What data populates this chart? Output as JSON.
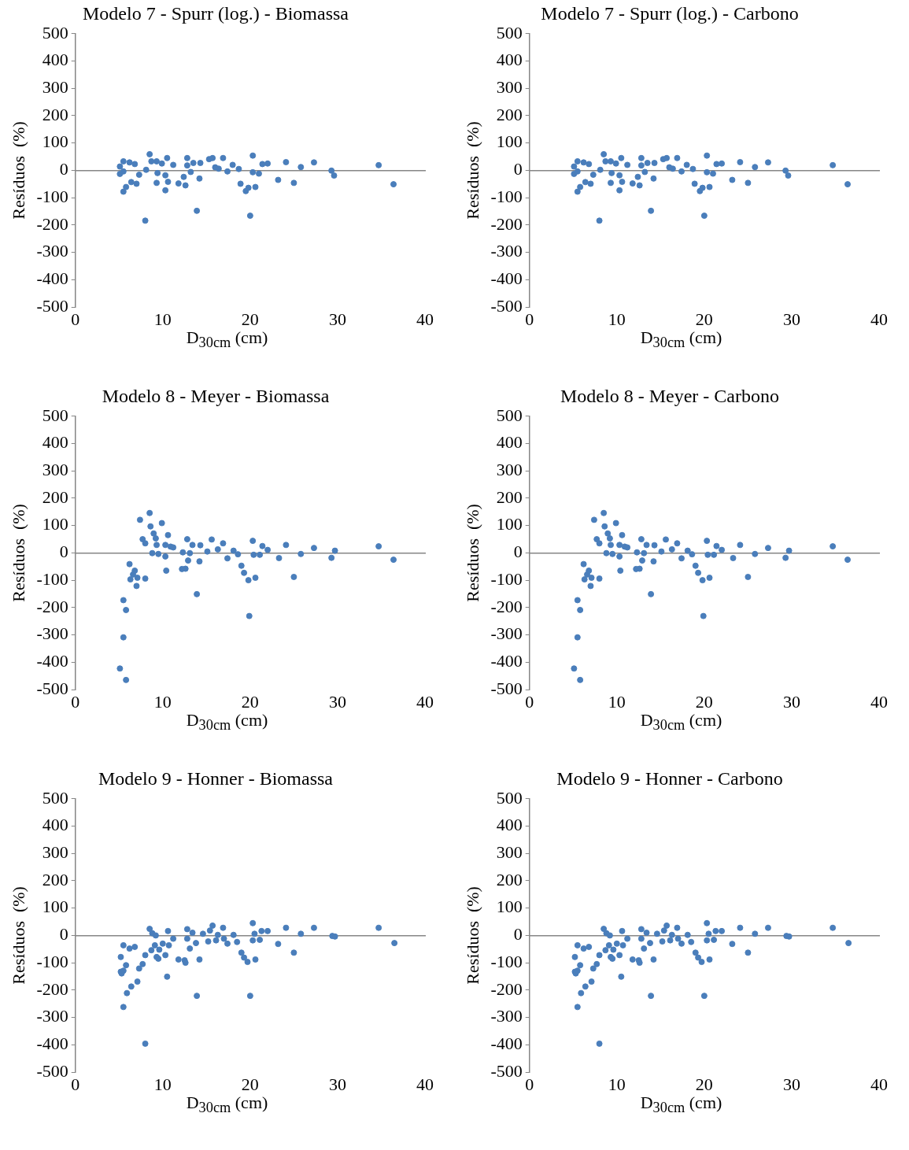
{
  "chart_data": [
    {
      "type": "scatter",
      "title": "Modelo 7 - Spurr (log.) - Biomassa",
      "xlabel": "D$_{30cm}$ (cm)",
      "ylabel": "Resíduos  (%)",
      "color": "#4a7ebb",
      "marker": "circle",
      "xlim": [
        0,
        40
      ],
      "xticks": [
        0,
        10,
        20,
        30,
        40
      ],
      "ylim": [
        -500,
        500
      ],
      "yticks": [
        -500,
        -400,
        -300,
        -200,
        -100,
        0,
        100,
        200,
        300,
        400,
        500
      ],
      "x": [
        5.1,
        5.1,
        5.5,
        5.5,
        5.5,
        5.8,
        6.2,
        6.4,
        6.8,
        7.0,
        7.3,
        8.0,
        8.1,
        8.5,
        8.7,
        9.3,
        9.3,
        9.4,
        9.9,
        10.3,
        10.3,
        10.5,
        10.6,
        11.2,
        11.8,
        12.4,
        12.6,
        12.8,
        12.8,
        13.2,
        13.5,
        13.9,
        14.2,
        14.3,
        15.3,
        15.7,
        16.0,
        16.4,
        16.9,
        17.4,
        18.0,
        18.7,
        18.9,
        19.5,
        19.8,
        20.0,
        20.3,
        20.3,
        20.6,
        21.0,
        21.4,
        22.0,
        23.2,
        24.1,
        25.0,
        25.8,
        27.3,
        29.3,
        29.6,
        34.7,
        36.4
      ],
      "values": [
        14,
        -13,
        33,
        -4,
        -78,
        -61,
        29,
        -43,
        23,
        -49,
        -16,
        -184,
        2,
        59,
        33,
        33,
        -46,
        -10,
        25,
        -18,
        -73,
        45,
        -42,
        20,
        -48,
        -24,
        -55,
        45,
        18,
        -6,
        27,
        -148,
        -30,
        27,
        41,
        45,
        11,
        6,
        45,
        -4,
        20,
        5,
        -49,
        -76,
        -64,
        -166,
        54,
        -7,
        -61,
        -12,
        23,
        25,
        -35,
        30,
        -46,
        12,
        29,
        -1,
        -19,
        19,
        -51
      ]
    },
    {
      "type": "scatter",
      "title": "Modelo 7 - Spurr (log.) - Carbono",
      "xlabel": "D$_{30cm}$ (cm)",
      "ylabel": "Resíduos  (%)",
      "color": "#4a7ebb",
      "marker": "circle",
      "xlim": [
        0,
        40
      ],
      "xticks": [
        0,
        10,
        20,
        30,
        40
      ],
      "ylim": [
        -500,
        500
      ],
      "yticks": [
        -500,
        -400,
        -300,
        -200,
        -100,
        0,
        100,
        200,
        300,
        400,
        500
      ],
      "x": [
        5.1,
        5.1,
        5.5,
        5.5,
        5.5,
        5.8,
        6.2,
        6.4,
        6.8,
        7.0,
        7.3,
        8.0,
        8.1,
        8.5,
        8.7,
        9.3,
        9.3,
        9.4,
        9.9,
        10.3,
        10.3,
        10.5,
        10.6,
        11.2,
        11.8,
        12.4,
        12.6,
        12.8,
        12.8,
        13.2,
        13.5,
        13.9,
        14.2,
        14.3,
        15.3,
        15.7,
        16.0,
        16.4,
        16.9,
        17.4,
        18.0,
        18.7,
        18.9,
        19.5,
        19.8,
        20.0,
        20.3,
        20.3,
        20.6,
        21.0,
        21.4,
        22.0,
        23.2,
        24.1,
        25.0,
        25.8,
        27.3,
        29.3,
        29.6,
        34.7,
        36.4
      ],
      "values": [
        14,
        -13,
        33,
        -4,
        -78,
        -61,
        29,
        -43,
        23,
        -49,
        -16,
        -184,
        2,
        59,
        33,
        33,
        -46,
        -10,
        25,
        -18,
        -73,
        45,
        -42,
        20,
        -48,
        -24,
        -55,
        45,
        18,
        -6,
        27,
        -148,
        -30,
        27,
        41,
        45,
        11,
        6,
        45,
        -4,
        20,
        5,
        -49,
        -76,
        -64,
        -166,
        54,
        -7,
        -61,
        -12,
        23,
        25,
        -35,
        30,
        -46,
        12,
        29,
        -1,
        -19,
        19,
        -51
      ]
    },
    {
      "type": "scatter",
      "title": "Modelo 8 - Meyer - Biomassa",
      "xlabel": "D$_{30cm}$ (cm)",
      "ylabel": "Resíduos  (%)",
      "color": "#4a7ebb",
      "marker": "circle",
      "xlim": [
        0,
        40
      ],
      "xticks": [
        0,
        10,
        20,
        30,
        40
      ],
      "ylim": [
        -500,
        500
      ],
      "yticks": [
        -500,
        -400,
        -300,
        -200,
        -100,
        0,
        100,
        200,
        300,
        400,
        500
      ],
      "x": [
        5.1,
        5.8,
        5.5,
        5.8,
        5.5,
        6.2,
        6.3,
        6.6,
        6.8,
        7.0,
        7.1,
        7.4,
        7.7,
        8.0,
        8.0,
        8.5,
        8.6,
        8.8,
        8.96,
        9.2,
        9.5,
        9.3,
        9.9,
        10.3,
        10.3,
        10.4,
        10.6,
        10.9,
        11.2,
        12.2,
        12.3,
        12.6,
        12.8,
        12.9,
        13.1,
        13.4,
        13.9,
        14.2,
        14.3,
        15.1,
        15.6,
        16.3,
        16.9,
        17.4,
        18.1,
        18.6,
        19.0,
        19.3,
        19.8,
        19.9,
        20.3,
        20.4,
        20.6,
        21.1,
        21.4,
        22.0,
        23.3,
        24.1,
        25.0,
        25.8,
        27.3,
        29.3,
        29.7,
        34.7,
        36.4
      ],
      "values": [
        -423,
        -465,
        -309,
        -209,
        -173,
        -41,
        -97,
        -79,
        -65,
        -121,
        -91,
        121,
        50,
        35,
        -94,
        146,
        97,
        -1,
        71,
        53,
        -4,
        29,
        109,
        29,
        -13,
        -65,
        65,
        23,
        20,
        -59,
        2,
        -58,
        50,
        -28,
        -1,
        29,
        -151,
        -31,
        28,
        5,
        49,
        13,
        35,
        -20,
        8,
        -5,
        -47,
        -73,
        -100,
        -231,
        44,
        -7,
        -91,
        -7,
        25,
        11,
        -19,
        29,
        -88,
        -4,
        18,
        -18,
        8,
        24,
        -25
      ]
    },
    {
      "type": "scatter",
      "title": "Modelo 8 - Meyer - Carbono",
      "xlabel": "D$_{30cm}$ (cm)",
      "ylabel": "Resíduos  (%)",
      "color": "#4a7ebb",
      "marker": "circle",
      "xlim": [
        0,
        40
      ],
      "xticks": [
        0,
        10,
        20,
        30,
        40
      ],
      "ylim": [
        -500,
        500
      ],
      "yticks": [
        -500,
        -400,
        -300,
        -200,
        -100,
        0,
        100,
        200,
        300,
        400,
        500
      ],
      "x": [
        5.1,
        5.8,
        5.5,
        5.8,
        5.5,
        6.2,
        6.3,
        6.6,
        6.8,
        7.0,
        7.1,
        7.4,
        7.7,
        8.0,
        8.0,
        8.5,
        8.6,
        8.8,
        8.96,
        9.2,
        9.5,
        9.3,
        9.9,
        10.3,
        10.3,
        10.4,
        10.6,
        10.9,
        11.2,
        12.2,
        12.3,
        12.6,
        12.8,
        12.9,
        13.1,
        13.4,
        13.9,
        14.2,
        14.3,
        15.1,
        15.6,
        16.3,
        16.9,
        17.4,
        18.1,
        18.6,
        19.0,
        19.3,
        19.8,
        19.9,
        20.3,
        20.4,
        20.6,
        21.1,
        21.4,
        22.0,
        23.3,
        24.1,
        25.0,
        25.8,
        27.3,
        29.3,
        29.7,
        34.7,
        36.4
      ],
      "values": [
        -423,
        -465,
        -309,
        -209,
        -173,
        -41,
        -97,
        -79,
        -65,
        -121,
        -91,
        121,
        50,
        35,
        -94,
        146,
        97,
        -1,
        71,
        53,
        -4,
        29,
        109,
        29,
        -13,
        -65,
        65,
        23,
        20,
        -59,
        2,
        -58,
        50,
        -28,
        -1,
        29,
        -151,
        -31,
        28,
        5,
        49,
        13,
        35,
        -20,
        8,
        -5,
        -47,
        -73,
        -100,
        -231,
        44,
        -7,
        -91,
        -7,
        25,
        11,
        -19,
        29,
        -88,
        -4,
        18,
        -18,
        8,
        24,
        -25
      ]
    },
    {
      "type": "scatter",
      "title": "Modelo 9 - Honner - Biomassa",
      "xlabel": "D$_{30cm}$ (cm)",
      "ylabel": "Resíduos  (%)",
      "color": "#4a7ebb",
      "marker": "circle",
      "xlim": [
        0,
        40
      ],
      "xticks": [
        0,
        10,
        20,
        30,
        40
      ],
      "ylim": [
        -500,
        500
      ],
      "yticks": [
        -500,
        -400,
        -300,
        -200,
        -100,
        0,
        100,
        200,
        300,
        400,
        500
      ],
      "x": [
        5.2,
        5.2,
        5.3,
        5.5,
        5.5,
        5.5,
        5.8,
        5.9,
        6.2,
        6.4,
        6.8,
        7.1,
        7.3,
        7.7,
        8.0,
        8.0,
        8.5,
        8.7,
        8.8,
        9.1,
        9.3,
        9.5,
        9.2,
        9.6,
        10.0,
        10.3,
        10.5,
        10.6,
        10.7,
        11.2,
        11.8,
        12.5,
        12.6,
        12.8,
        12.8,
        13.1,
        13.4,
        13.8,
        13.9,
        14.2,
        14.6,
        15.2,
        15.4,
        15.7,
        16.1,
        16.3,
        16.9,
        17.0,
        17.4,
        18.1,
        18.5,
        19.0,
        19.3,
        19.7,
        20.0,
        20.3,
        20.3,
        20.5,
        20.6,
        21.1,
        21.3,
        22.0,
        23.2,
        24.1,
        25.0,
        25.8,
        27.3,
        29.4,
        29.7,
        34.7,
        36.5
      ],
      "values": [
        -79,
        -133,
        -139,
        -129,
        -36,
        -262,
        -109,
        -211,
        -48,
        -187,
        -42,
        -169,
        -121,
        -105,
        -396,
        -72,
        24,
        -54,
        8,
        -36,
        -79,
        -85,
        0,
        -52,
        -30,
        -72,
        -151,
        16,
        -36,
        -12,
        -88,
        -91,
        -100,
        23,
        -12,
        -48,
        10,
        -28,
        -221,
        -88,
        6,
        -22,
        18,
        36,
        -18,
        2,
        28,
        -12,
        -30,
        2,
        -24,
        -63,
        -81,
        -97,
        -221,
        45,
        -18,
        6,
        -88,
        -16,
        16,
        16,
        -31,
        28,
        -63,
        6,
        28,
        -2,
        -4,
        28,
        -28
      ]
    },
    {
      "type": "scatter",
      "title": "Modelo 9 - Honner - Carbono",
      "xlabel": "D$_{30cm}$ (cm)",
      "ylabel": "Resíduos  (%)",
      "color": "#4a7ebb",
      "marker": "circle",
      "xlim": [
        0,
        40
      ],
      "xticks": [
        0,
        10,
        20,
        30,
        40
      ],
      "ylim": [
        -500,
        500
      ],
      "yticks": [
        -500,
        -400,
        -300,
        -200,
        -100,
        0,
        100,
        200,
        300,
        400,
        500
      ],
      "x": [
        5.2,
        5.2,
        5.3,
        5.5,
        5.5,
        5.5,
        5.8,
        5.9,
        6.2,
        6.4,
        6.8,
        7.1,
        7.3,
        7.7,
        8.0,
        8.0,
        8.5,
        8.7,
        8.8,
        9.1,
        9.3,
        9.5,
        9.2,
        9.6,
        10.0,
        10.3,
        10.5,
        10.6,
        10.7,
        11.2,
        11.8,
        12.5,
        12.6,
        12.8,
        12.8,
        13.1,
        13.4,
        13.8,
        13.9,
        14.2,
        14.6,
        15.2,
        15.4,
        15.7,
        16.1,
        16.3,
        16.9,
        17.0,
        17.4,
        18.1,
        18.5,
        19.0,
        19.3,
        19.7,
        20.0,
        20.3,
        20.3,
        20.5,
        20.6,
        21.1,
        21.3,
        22.0,
        23.2,
        24.1,
        25.0,
        25.8,
        27.3,
        29.4,
        29.7,
        34.7,
        36.5
      ],
      "values": [
        -79,
        -133,
        -139,
        -129,
        -36,
        -262,
        -109,
        -211,
        -48,
        -187,
        -42,
        -169,
        -121,
        -105,
        -396,
        -72,
        24,
        -54,
        8,
        -36,
        -79,
        -85,
        0,
        -52,
        -30,
        -72,
        -151,
        16,
        -36,
        -12,
        -88,
        -91,
        -100,
        23,
        -12,
        -48,
        10,
        -28,
        -221,
        -88,
        6,
        -22,
        18,
        36,
        -18,
        2,
        28,
        -12,
        -30,
        2,
        -24,
        -63,
        -81,
        -97,
        -221,
        45,
        -18,
        6,
        -88,
        -16,
        16,
        16,
        -31,
        28,
        -63,
        6,
        28,
        -2,
        -4,
        28,
        -28
      ]
    }
  ]
}
